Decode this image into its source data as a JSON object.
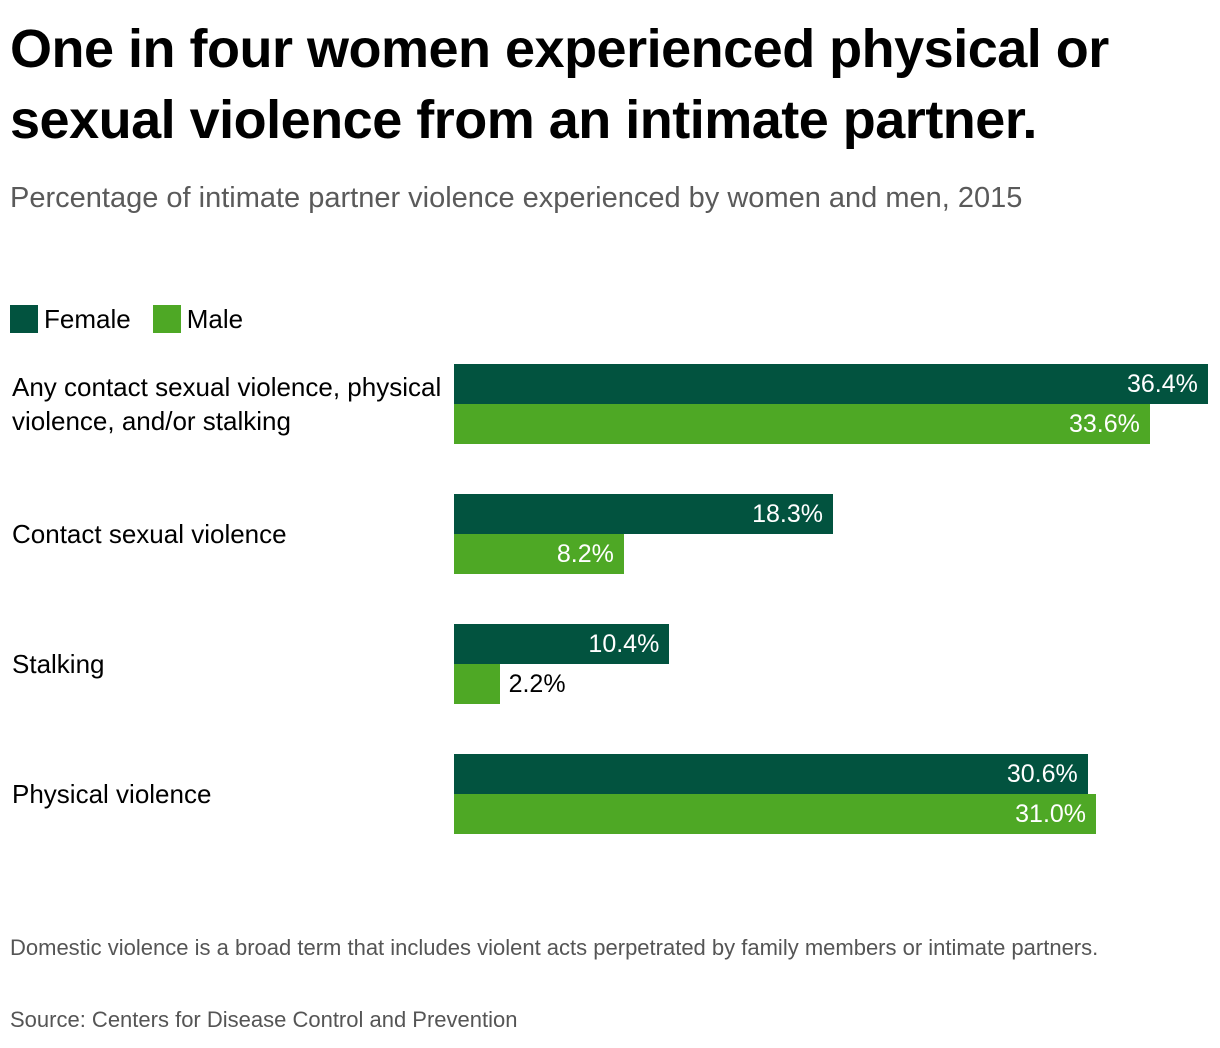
{
  "header": {
    "title": "One in four women experienced physical or sexual violence from an intimate partner.",
    "subtitle": "Percentage of intimate partner violence experienced by women and men, 2015"
  },
  "legend": {
    "female": "Female",
    "male": "Male"
  },
  "colors": {
    "female": "#02533f",
    "male": "#4ea825",
    "label_on_bar": "#ffffff",
    "label_off_bar": "#000000"
  },
  "chart_data": {
    "type": "bar",
    "orientation": "horizontal",
    "title": "One in four women experienced physical or sexual violence from an intimate partner.",
    "subtitle": "Percentage of intimate partner violence experienced by women and men, 2015",
    "categories": [
      "Any contact sexual violence, physical violence, and/or stalking",
      "Contact sexual violence",
      "Stalking",
      "Physical violence"
    ],
    "series": [
      {
        "name": "Female",
        "values": [
          36.4,
          18.3,
          10.4,
          30.6
        ],
        "labels": [
          "36.4%",
          "18.3%",
          "10.4%",
          "30.6%"
        ]
      },
      {
        "name": "Male",
        "values": [
          33.6,
          8.2,
          2.2,
          31.0
        ],
        "labels": [
          "33.6%",
          "8.2%",
          "2.2%",
          "31.0%"
        ]
      }
    ],
    "xlim": [
      0,
      36.4
    ],
    "grid": false,
    "legend_position": "top-left",
    "unit": "%"
  },
  "footer": {
    "note": "Domestic violence is a broad term that includes violent acts perpetrated by family members or intimate partners.",
    "source": "Source: Centers for Disease Control and Prevention"
  }
}
